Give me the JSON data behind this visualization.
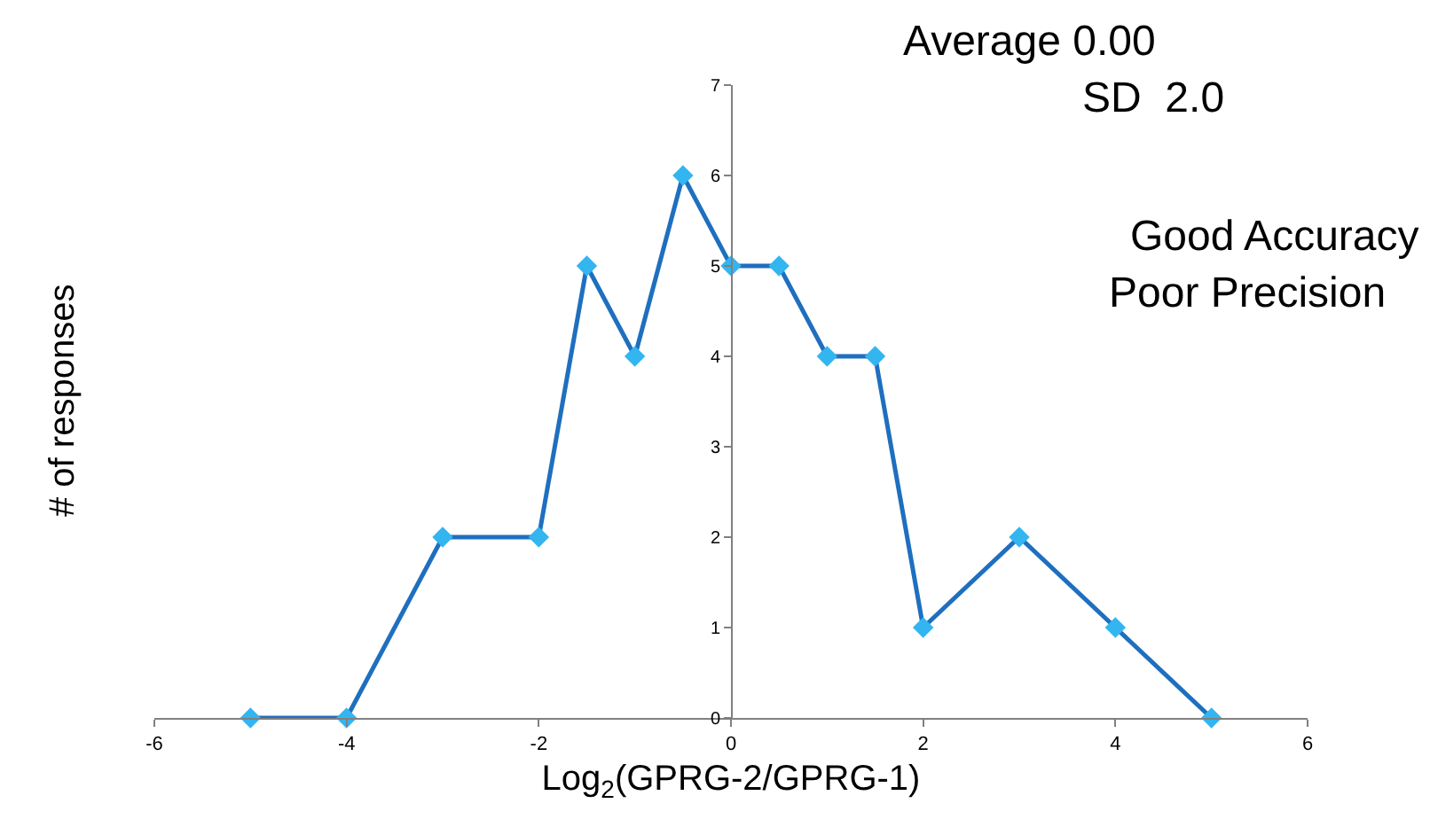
{
  "chart_data": {
    "type": "line",
    "xlabel": "Log$_{2}$(GPRG-2/GPRG-1)",
    "ylabel": "# of responses",
    "annotations": [
      "Average 0.00",
      "SD  2.0",
      "Good Accuracy",
      "Poor Precision"
    ],
    "x": [
      -5,
      -4,
      -3,
      -2,
      -1.5,
      -1,
      -0.5,
      0,
      0.5,
      1,
      1.5,
      2,
      3,
      4,
      5
    ],
    "series": [
      {
        "color": "#1f6fbf",
        "values": [
          0,
          0,
          2,
          2,
          5,
          4,
          6,
          5,
          5,
          4,
          4,
          1,
          2,
          1,
          0
        ]
      }
    ],
    "xlim": [
      -6,
      6
    ],
    "xticks": [
      -6,
      -4,
      -2,
      0,
      2,
      4,
      6
    ],
    "ylim": [
      0,
      7
    ],
    "yticks": [
      0,
      1,
      2,
      3,
      4,
      5,
      6,
      7
    ],
    "grid": false,
    "legend": false,
    "marker": "diamond",
    "line_style": "solid"
  }
}
